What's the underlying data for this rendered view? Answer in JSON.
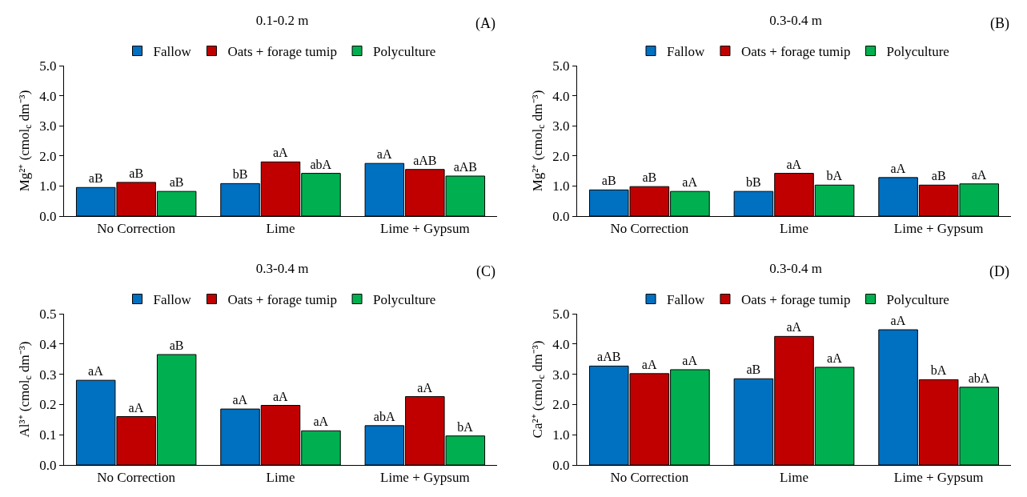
{
  "chart_data": [
    {
      "type": "bar",
      "title": "0.1-0.2 m",
      "annotations": [
        "(A)"
      ],
      "ylabel": "Mg²⁺ (cmol$_{c}$ dm⁻³)",
      "categories": [
        "No Correction",
        "Lime",
        "Lime + Gypsum"
      ],
      "ylim": [
        0,
        5
      ],
      "yticks": [
        {
          "value": 0,
          "label": "0.0"
        },
        {
          "value": 1,
          "label": "1.0"
        },
        {
          "value": 2,
          "label": "2.0"
        },
        {
          "value": 3,
          "label": "3.0"
        },
        {
          "value": 4,
          "label": "4.0"
        },
        {
          "value": 5,
          "label": "5.0"
        }
      ],
      "grid": false,
      "legend": "top",
      "series": [
        {
          "name": "Fallow",
          "color": "#0070c0",
          "values": [
            0.95,
            1.08,
            1.75
          ],
          "value_labels": [
            "aB",
            "bB",
            "aA"
          ]
        },
        {
          "name": "Oats + forage tumip",
          "color": "#c00000",
          "values": [
            1.12,
            1.8,
            1.55
          ],
          "value_labels": [
            "aB",
            "aA",
            "aAB"
          ]
        },
        {
          "name": "Polyculture",
          "color": "#00b050",
          "values": [
            0.82,
            1.42,
            1.33
          ],
          "value_labels": [
            "aB",
            "abA",
            "aAB"
          ]
        }
      ]
    },
    {
      "type": "bar",
      "title": "0.3-0.4 m",
      "annotations": [
        "(B)"
      ],
      "ylabel": "Mg²⁺ (cmol$_{c}$ dm⁻³)",
      "categories": [
        "No Correction",
        "Lime",
        "Lime + Gypsum"
      ],
      "ylim": [
        0,
        5
      ],
      "yticks": [
        {
          "value": 0,
          "label": "0.0"
        },
        {
          "value": 1,
          "label": "1.0"
        },
        {
          "value": 2,
          "label": "2.0"
        },
        {
          "value": 3,
          "label": "3.0"
        },
        {
          "value": 4,
          "label": "4.0"
        },
        {
          "value": 5,
          "label": "5.0"
        }
      ],
      "grid": false,
      "legend": "top",
      "series": [
        {
          "name": "Fallow",
          "color": "#0070c0",
          "values": [
            0.87,
            0.82,
            1.28
          ],
          "value_labels": [
            "aB",
            "bB",
            "aA"
          ]
        },
        {
          "name": "Oats + forage tumip",
          "color": "#c00000",
          "values": [
            0.98,
            1.42,
            1.03
          ],
          "value_labels": [
            "aB",
            "aA",
            "aB"
          ]
        },
        {
          "name": "Polyculture",
          "color": "#00b050",
          "values": [
            0.82,
            1.03,
            1.07
          ],
          "value_labels": [
            "aA",
            "bA",
            "aA"
          ]
        }
      ]
    },
    {
      "type": "bar",
      "title": "0.3-0.4 m",
      "annotations": [
        "(C)"
      ],
      "ylabel": "Al³⁺ (cmol$_{c}$ dm⁻³)",
      "categories": [
        "No Correction",
        "Lime",
        "Lime + Gypsum"
      ],
      "ylim": [
        0,
        0.5
      ],
      "yticks": [
        {
          "value": 0,
          "label": "0.0"
        },
        0.1,
        0.2,
        0.3,
        0.4,
        0.5
      ],
      "grid": false,
      "legend": "top",
      "series": [
        {
          "name": "Fallow",
          "color": "#0070c0",
          "values": [
            0.28,
            0.185,
            0.13
          ],
          "value_labels": [
            "aA",
            "aA",
            "abA"
          ]
        },
        {
          "name": "Oats + forage tumip",
          "color": "#c00000",
          "values": [
            0.16,
            0.197,
            0.226
          ],
          "value_labels": [
            "aA",
            "aA",
            "aA"
          ]
        },
        {
          "name": "Polyculture",
          "color": "#00b050",
          "values": [
            0.365,
            0.113,
            0.096
          ],
          "value_labels": [
            "aB",
            "aA",
            "bA"
          ]
        }
      ]
    },
    {
      "type": "bar",
      "title": "0.3-0.4 m",
      "annotations": [
        "(D)"
      ],
      "ylabel": "Ca²⁺ (cmol$_{c}$ dm⁻³)",
      "categories": [
        "No Correction",
        "Lime",
        "Lime + Gypsum"
      ],
      "ylim": [
        0,
        5
      ],
      "yticks": [
        {
          "value": 0,
          "label": "0.0"
        },
        {
          "value": 1,
          "label": "1.0"
        },
        {
          "value": 2,
          "label": "2.0"
        },
        {
          "value": 3,
          "label": "3.0"
        },
        {
          "value": 4,
          "label": "4.0"
        },
        {
          "value": 5,
          "label": "5.0"
        }
      ],
      "grid": false,
      "legend": "top",
      "series": [
        {
          "name": "Fallow",
          "color": "#0070c0",
          "values": [
            3.27,
            2.85,
            4.47
          ],
          "value_labels": [
            "aAB",
            "aB",
            "aA"
          ]
        },
        {
          "name": "Oats + forage tumip",
          "color": "#c00000",
          "values": [
            3.02,
            4.25,
            2.82
          ],
          "value_labels": [
            "aA",
            "aA",
            "bA"
          ]
        },
        {
          "name": "Polyculture",
          "color": "#00b050",
          "values": [
            3.15,
            3.23,
            2.57
          ],
          "value_labels": [
            "aA",
            "aA",
            "abA"
          ]
        }
      ]
    }
  ]
}
